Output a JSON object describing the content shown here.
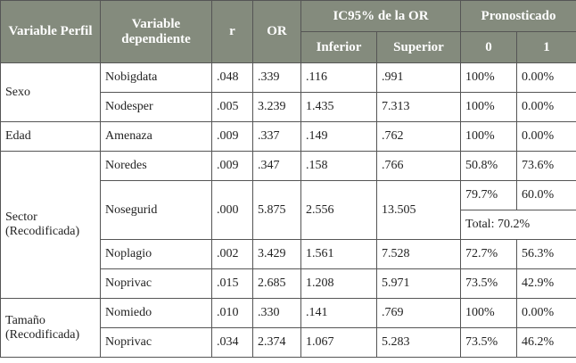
{
  "table": {
    "header": {
      "perfil": "Variable Perfil",
      "dependiente": "Variable dependiente",
      "r": "r",
      "or": "OR",
      "ic": "IC95% de la OR",
      "inferior": "Inferior",
      "superior": "Superior",
      "pronosticado": "Pronosticado",
      "p0": "0",
      "p1": "1"
    },
    "groups": [
      {
        "label": "Sexo",
        "rows": [
          {
            "cells": [
              "Nobigdata",
              ".048",
              ".339",
              ".116",
              ".991",
              "100%",
              "0.00%"
            ]
          },
          {
            "cells": [
              "Nodesper",
              ".005",
              "3.239",
              "1.435",
              "7.313",
              "100%",
              "0.00%"
            ]
          }
        ]
      },
      {
        "label": "Edad",
        "rows": [
          {
            "cells": [
              "Amenaza",
              ".009",
              ".337",
              ".149",
              ".762",
              "100%",
              "0.00%"
            ]
          }
        ]
      },
      {
        "label": "Sector (Recodificada)",
        "rows": [
          {
            "cells": [
              "Noredes",
              ".009",
              ".347",
              ".158",
              ".766",
              "50.8%",
              "73.6%"
            ]
          },
          {
            "cells": [
              "Nosegurid",
              ".000",
              "5.875",
              "2.556",
              "13.505",
              "79.7%",
              "60.0%"
            ],
            "total": "Total: 70.2%"
          },
          {
            "cells": [
              "Noplagio",
              ".002",
              "3.429",
              "1.561",
              "7.528",
              "72.7%",
              "56.3%"
            ]
          },
          {
            "cells": [
              "Noprivac",
              ".015",
              "2.685",
              "1.208",
              "5.971",
              "73.5%",
              "42.9%"
            ]
          }
        ]
      },
      {
        "label": "Tamaño (Recodificada)",
        "rows": [
          {
            "cells": [
              "Nomiedo",
              ".010",
              ".330",
              ".141",
              ".769",
              "100%",
              "0.00%"
            ]
          },
          {
            "cells": [
              "Noprivac",
              ".034",
              "2.374",
              "1.067",
              "5.283",
              "73.5%",
              "46.2%"
            ]
          }
        ]
      }
    ]
  }
}
